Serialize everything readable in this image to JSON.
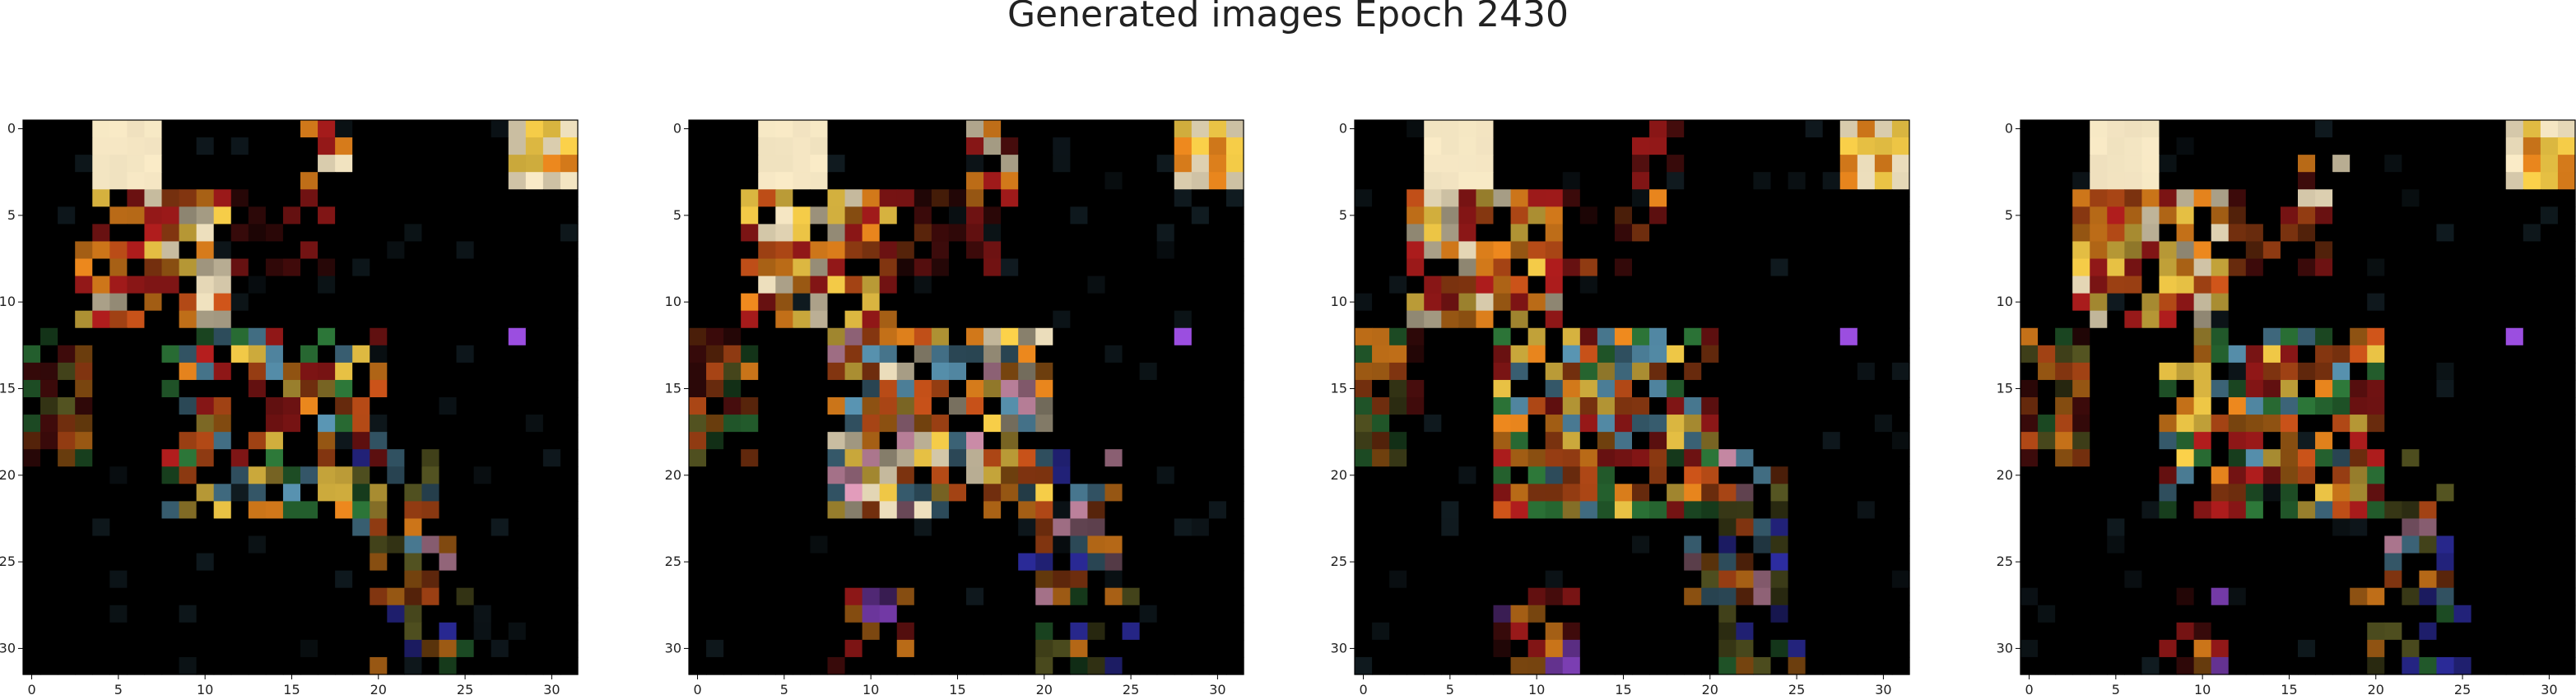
{
  "figure": {
    "title": "Generated images Epoch 2430"
  },
  "chart_data": [
    {
      "type": "heatmap",
      "subplot": 1,
      "xticks": [
        0,
        5,
        10,
        15,
        20,
        25,
        30
      ],
      "yticks": [
        0,
        5,
        10,
        15,
        20,
        25,
        30
      ],
      "xlim": [
        -0.5,
        31.5
      ],
      "ylim": [
        31.5,
        -0.5
      ],
      "grid": false,
      "seed": 11,
      "variant": 0
    },
    {
      "type": "heatmap",
      "subplot": 2,
      "xticks": [
        0,
        5,
        10,
        15,
        20,
        25,
        30
      ],
      "yticks": [
        0,
        5,
        10,
        15,
        20,
        25,
        30
      ],
      "xlim": [
        -0.5,
        31.5
      ],
      "ylim": [
        31.5,
        -0.5
      ],
      "grid": false,
      "seed": 23,
      "variant": 1
    },
    {
      "type": "heatmap",
      "subplot": 3,
      "xticks": [
        0,
        5,
        10,
        15,
        20,
        25,
        30
      ],
      "yticks": [
        0,
        5,
        10,
        15,
        20,
        25,
        30
      ],
      "xlim": [
        -0.5,
        31.5
      ],
      "ylim": [
        31.5,
        -0.5
      ],
      "grid": false,
      "seed": 37,
      "variant": 2
    },
    {
      "type": "heatmap",
      "subplot": 4,
      "xticks": [
        0,
        5,
        10,
        15,
        20,
        25,
        30
      ],
      "yticks": [
        0,
        5,
        10,
        15,
        20,
        25,
        30
      ],
      "xlim": [
        -0.5,
        31.5
      ],
      "ylim": [
        31.5,
        -0.5
      ],
      "grid": false,
      "seed": 41,
      "variant": 3
    }
  ],
  "palette": {
    "cream": "#fbecc8",
    "yellow": "#fcd24a",
    "orange": "#f08a1e",
    "deep_orange": "#d2561a",
    "red": "#b81e1e",
    "dark_red": "#5a1010",
    "magenta_pink": "#e8a0c0",
    "purple": "#9b4ee0",
    "blue": "#3a3ad0",
    "teal": "#5a96b4",
    "green": "#2e7a3a",
    "olive": "#6a6a2a",
    "black": "#000000"
  }
}
